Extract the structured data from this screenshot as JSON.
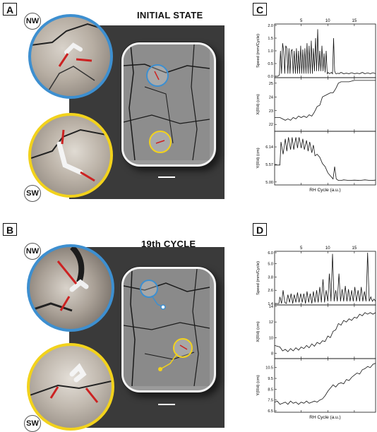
{
  "panels": {
    "A": {
      "label": "A",
      "title": "INITIAL STATE",
      "loc_top": "NW",
      "loc_bottom": "SW"
    },
    "B": {
      "label": "B",
      "title": "19th CYCLE",
      "loc_top": "NW",
      "loc_bottom": "SW"
    },
    "C": {
      "label": "C"
    },
    "D": {
      "label": "D"
    }
  },
  "colors": {
    "blue": "#3d8fd0",
    "yellow": "#f2d21c",
    "dark": "#3a3a3a"
  },
  "chart_data": [
    {
      "panel": "C",
      "type": "line",
      "xlabel": "RH Cycle (a.u.)",
      "x_ticks": [
        "5",
        "10",
        "15"
      ],
      "xlim": [
        0,
        19
      ],
      "subplots": [
        {
          "ylabel": "Speed (mm/Cycle)",
          "y_ticks": [
            "0.0",
            "0.5",
            "1.0",
            "1.5",
            "2.0"
          ],
          "ylim": [
            0,
            2.0
          ],
          "x": [
            0,
            0.6,
            0.9,
            1.1,
            1.3,
            1.5,
            1.7,
            1.9,
            2.1,
            2.3,
            2.5,
            2.7,
            2.9,
            3.1,
            3.3,
            3.5,
            3.7,
            3.9,
            4.1,
            4.3,
            4.5,
            4.7,
            4.9,
            5.1,
            5.3,
            5.5,
            5.7,
            5.9,
            6.1,
            6.3,
            6.5,
            6.7,
            6.9,
            7.1,
            7.3,
            7.5,
            7.7,
            7.9,
            8.1,
            8.3,
            8.5,
            8.7,
            8.9,
            9.1,
            9.3,
            9.5,
            9.7,
            9.9,
            10.1,
            10.3,
            10.5,
            10.7,
            10.9,
            11.1,
            11.3,
            11.5,
            11.7,
            11.9,
            12.1,
            12.5,
            13,
            13.5,
            14,
            14.5,
            15,
            15.5,
            16,
            16.5,
            17,
            17.5,
            18,
            18.5,
            19
          ],
          "y": [
            0,
            0,
            0.05,
            1.0,
            0.1,
            1.3,
            1.0,
            0.1,
            1.2,
            1.1,
            0.1,
            1.1,
            0.1,
            1.0,
            1.05,
            0.1,
            1.0,
            0.1,
            1.1,
            0.1,
            1.0,
            0.1,
            1.2,
            0.1,
            1.05,
            0.1,
            1.1,
            0.1,
            1.3,
            0.1,
            1.2,
            0.1,
            1.4,
            0.1,
            1.1,
            0.2,
            1.5,
            0.2,
            1.85,
            0.2,
            1.0,
            0.2,
            1.2,
            0.2,
            0.9,
            0.15,
            1.0,
            0.1,
            0.15,
            0.1,
            0.12,
            0.15,
            0.1,
            1.5,
            0.2,
            0.1,
            0.1,
            0.12,
            0.1,
            0.15,
            0.1,
            0.12,
            0.1,
            0.14,
            0.1,
            0.12,
            0.1,
            0.15,
            0.1,
            0.13,
            0.1,
            0.14,
            0.1
          ]
        },
        {
          "ylabel": "X(RH) (cm)",
          "y_ticks": [
            "22",
            "23",
            "24",
            "25"
          ],
          "ylim": [
            21.6,
            25.3
          ],
          "x": [
            0,
            1,
            2,
            2.5,
            3,
            3.5,
            4,
            4.5,
            5,
            5.5,
            6,
            6.5,
            7,
            7.5,
            8,
            8.5,
            9,
            9.5,
            10,
            10.5,
            11,
            11.5,
            12,
            12.5,
            13,
            14,
            15,
            16,
            17,
            18,
            19
          ],
          "y": [
            22.5,
            22.5,
            22.3,
            22.4,
            22.3,
            22.5,
            22.4,
            22.6,
            22.5,
            22.6,
            22.5,
            22.7,
            22.6,
            22.9,
            23.3,
            23.4,
            24.0,
            24.1,
            24.2,
            24.3,
            24.3,
            24.6,
            25.0,
            25.1,
            25.1,
            25.1,
            25.2,
            25.2,
            25.2,
            25.2,
            25.2
          ]
        },
        {
          "ylabel": "Y(RH) (cm)",
          "y_ticks": [
            "5.00",
            "5.57",
            "6.14"
          ],
          "ylim": [
            4.95,
            6.6
          ],
          "x": [
            0,
            1,
            1.2,
            1.6,
            2,
            2.3,
            2.6,
            3,
            3.3,
            3.6,
            4,
            4.3,
            4.6,
            5,
            5.3,
            5.6,
            6,
            6.3,
            6.6,
            7,
            7.3,
            7.6,
            8,
            8.5,
            9,
            9.5,
            10,
            10.5,
            11,
            11.3,
            11.6,
            12,
            12.5,
            13,
            14,
            15,
            16,
            17,
            18,
            19
          ],
          "y": [
            5.55,
            5.55,
            6.3,
            5.9,
            6.4,
            6.0,
            6.45,
            6.05,
            6.45,
            6.05,
            6.45,
            6.1,
            6.45,
            6.1,
            6.4,
            6.05,
            6.35,
            6.0,
            6.3,
            5.95,
            6.2,
            5.85,
            5.9,
            5.8,
            5.6,
            5.5,
            5.3,
            5.2,
            5.1,
            5.5,
            5.1,
            5.05,
            5.05,
            5.07,
            5.05,
            5.06,
            5.05,
            5.07,
            5.05,
            5.06
          ]
        }
      ]
    },
    {
      "panel": "D",
      "type": "line",
      "xlabel": "RH Cycle (a.u.)",
      "x_ticks": [
        "5",
        "10",
        "15"
      ],
      "xlim": [
        0,
        19
      ],
      "subplots": [
        {
          "ylabel": "Speed (mm/Cycle)",
          "y_ticks": [
            "1.4",
            "2.6",
            "3.8",
            "5.0",
            "6.0"
          ],
          "ylim": [
            1.4,
            6.0
          ],
          "x": [
            0,
            0.8,
            1,
            1.3,
            1.6,
            1.9,
            2.2,
            2.5,
            2.8,
            3.1,
            3.4,
            3.7,
            4,
            4.3,
            4.6,
            4.9,
            5.2,
            5.5,
            5.8,
            6.1,
            6.4,
            6.7,
            7,
            7.3,
            7.6,
            7.9,
            8.2,
            8.5,
            8.8,
            9.1,
            9.4,
            9.7,
            10,
            10.3,
            10.6,
            10.9,
            11.2,
            11.5,
            11.8,
            12.1,
            12.4,
            12.7,
            13,
            13.3,
            13.6,
            13.9,
            14.2,
            14.5,
            14.8,
            15.1,
            15.4,
            15.7,
            16,
            16.3,
            16.6,
            16.9,
            17.2,
            17.5,
            17.8,
            18.1,
            18.4,
            18.7,
            19
          ],
          "y": [
            1.4,
            1.4,
            2.0,
            1.4,
            2.6,
            1.5,
            1.4,
            2.2,
            1.5,
            2.3,
            1.4,
            2.2,
            1.5,
            2.4,
            1.5,
            2.3,
            1.5,
            2.3,
            1.4,
            2.5,
            1.5,
            2.3,
            1.4,
            2.5,
            1.5,
            2.6,
            1.5,
            2.9,
            1.5,
            3.6,
            1.5,
            2.6,
            1.6,
            4.1,
            1.6,
            5.9,
            1.6,
            2.6,
            1.6,
            4.1,
            1.6,
            2.7,
            1.6,
            3.0,
            1.6,
            2.7,
            1.6,
            2.6,
            1.6,
            2.9,
            1.6,
            2.6,
            1.6,
            2.9,
            1.6,
            2.5,
            1.6,
            6.0,
            1.6,
            2.0,
            1.6,
            1.8,
            1.6
          ]
        },
        {
          "ylabel": "X(RH) (cm)",
          "y_ticks": [
            "8",
            "10",
            "12",
            "14"
          ],
          "ylim": [
            7.5,
            14
          ],
          "x": [
            0,
            1,
            1.5,
            2,
            2.5,
            3,
            3.5,
            4,
            4.5,
            5,
            5.5,
            6,
            6.5,
            7,
            7.5,
            8,
            8.5,
            9,
            9.5,
            10,
            10.5,
            11,
            11.5,
            12,
            12.5,
            13,
            13.5,
            14,
            14.5,
            15,
            15.5,
            16,
            16.5,
            17,
            17.5,
            18,
            18.5,
            19
          ],
          "y": [
            9.0,
            8.8,
            8.3,
            8.5,
            8.2,
            8.6,
            8.3,
            8.7,
            8.4,
            8.8,
            8.6,
            9.0,
            8.7,
            9.2,
            8.9,
            9.4,
            9.2,
            9.6,
            9.5,
            10.2,
            10.0,
            10.8,
            11.0,
            11.8,
            11.6,
            12.2,
            12.0,
            12.4,
            12.2,
            12.6,
            12.5,
            13.0,
            12.8,
            13.2,
            13.0,
            13.2,
            13.0,
            13.2
          ]
        },
        {
          "ylabel": "Y(RH) (cm)",
          "y_ticks": [
            "6.5",
            "7.5",
            "8.5",
            "9.5",
            "10.5"
          ],
          "ylim": [
            6.5,
            11.2
          ],
          "x": [
            0,
            0.5,
            1,
            1.5,
            2,
            2.5,
            3,
            3.5,
            4,
            4.5,
            5,
            5.5,
            6,
            6.5,
            7,
            7.5,
            8,
            8.5,
            9,
            9.5,
            10,
            10.5,
            11,
            11.5,
            12,
            12.5,
            13,
            13.5,
            14,
            14.5,
            15,
            15.5,
            16,
            16.5,
            17,
            17.5,
            18,
            18.5,
            19
          ],
          "y": [
            7.3,
            7.4,
            7.1,
            7.2,
            7.3,
            7.1,
            7.4,
            7.2,
            7.3,
            7.1,
            7.3,
            7.2,
            7.4,
            7.2,
            7.3,
            7.4,
            7.3,
            7.5,
            7.6,
            7.9,
            8.3,
            8.6,
            8.9,
            8.7,
            9.0,
            9.1,
            9.0,
            9.4,
            9.3,
            9.6,
            9.8,
            10.0,
            9.9,
            10.3,
            10.4,
            10.6,
            10.5,
            10.8,
            10.9
          ]
        }
      ]
    }
  ]
}
